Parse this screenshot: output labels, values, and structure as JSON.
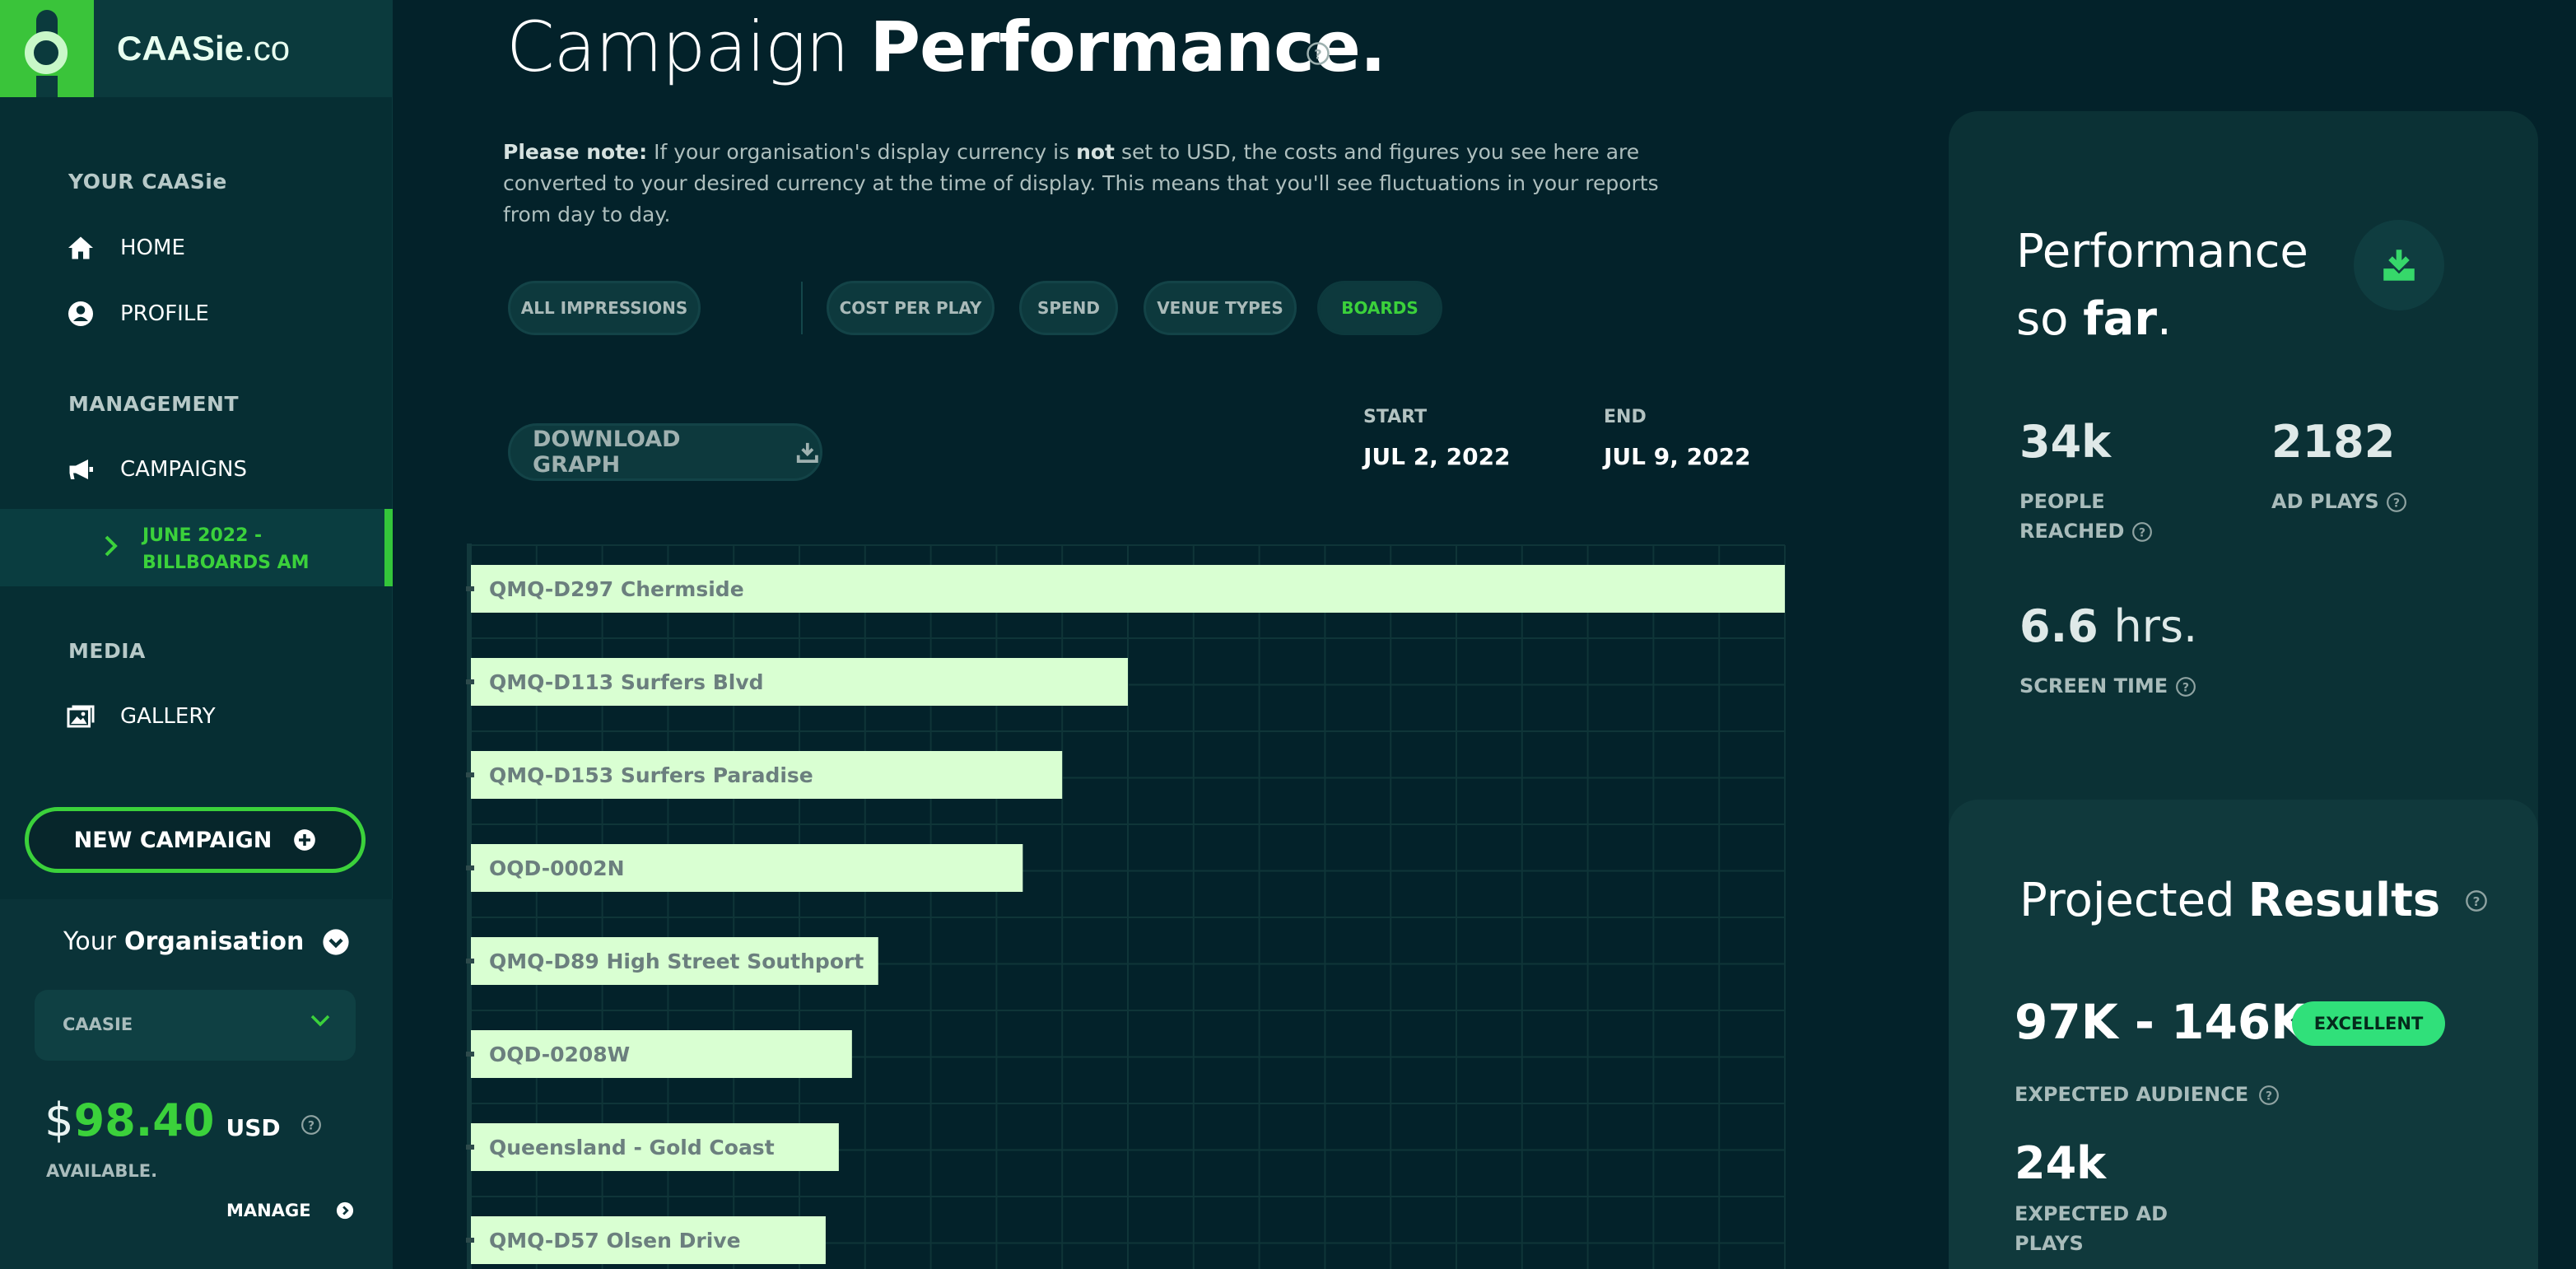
{
  "brand": {
    "name": "CAASie",
    "suffix": ".co"
  },
  "sidebar": {
    "section_your": "YOUR CAASie",
    "home": "HOME",
    "profile": "PROFILE",
    "section_management": "MANAGEMENT",
    "campaigns": "CAMPAIGNS",
    "active_campaign_line1": "JUNE 2022 -",
    "active_campaign_line2": "BILLBOARDS AM",
    "section_media": "MEDIA",
    "gallery": "GALLERY",
    "new_campaign": "NEW CAMPAIGN"
  },
  "org": {
    "title_prefix": "Your",
    "title_bold": "Organisation",
    "selected": "CAASIE",
    "currency_symbol": "$",
    "balance": "98.40",
    "currency": "USD",
    "available": "AVAILABLE.",
    "manage": "MANAGE"
  },
  "page": {
    "title_light": "Campaign",
    "title_bold": "Performance.",
    "note_bold": "Please note:",
    "note_text_1": "If your organisation's display currency is",
    "note_not": "not",
    "note_text_2": "set to USD, the costs and figures you see here are converted to your desired currency at the time of display. This means that you'll see fluctuations in your reports from day to day."
  },
  "filters": {
    "all_impressions": "ALL IMPRESSIONS",
    "cost_per_play": "COST PER PLAY",
    "spend": "SPEND",
    "venue_types": "VENUE TYPES",
    "boards": "BOARDS",
    "active": "BOARDS"
  },
  "graph": {
    "download": "DOWNLOAD GRAPH",
    "start_label": "START",
    "start_value": "JUL 2, 2022",
    "end_label": "END",
    "end_value": "JUL 9, 2022"
  },
  "chart_data": {
    "type": "bar",
    "orientation": "horizontal",
    "categories": [
      "QMQ-D297 Chermside",
      "QMQ-D113 Surfers Blvd",
      "QMQ-D153 Surfers Paradise",
      "OQD-0002N",
      "QMQ-D89 High Street Southport",
      "OQD-0208W",
      "Queensland - Gold Coast",
      "QMQ-D57 Olsen Drive"
    ],
    "values": [
      100,
      50,
      45,
      42,
      31,
      29,
      28,
      27
    ],
    "xlim": [
      0,
      100
    ],
    "grid": true,
    "bar_color": "#d9ffd2",
    "label_color": "#6b7f7e",
    "grid_color": "#0f3538"
  },
  "performance": {
    "title_line1": "Performance",
    "title_line2_prefix": "so",
    "title_line2_bold": "far",
    "title_line2_suffix": ".",
    "people_reached_value": "34k",
    "people_reached_label_1": "PEOPLE",
    "people_reached_label_2": "REACHED",
    "ad_plays_value": "2182",
    "ad_plays_label": "AD PLAYS",
    "screen_time_value": "6.6",
    "screen_time_unit": "hrs.",
    "screen_time_label": "SCREEN TIME"
  },
  "projected": {
    "title_light": "Projected",
    "title_bold": "Results",
    "audience_value": "97K - 146K",
    "badge": "EXCELLENT",
    "audience_label": "EXPECTED AUDIENCE",
    "ad_plays_value": "24k",
    "ad_plays_label_1": "EXPECTED AD",
    "ad_plays_label_2": "PLAYS"
  },
  "colors": {
    "accent_green": "#3bd13b",
    "background": "#03222a",
    "badge_green": "#30e07a"
  }
}
